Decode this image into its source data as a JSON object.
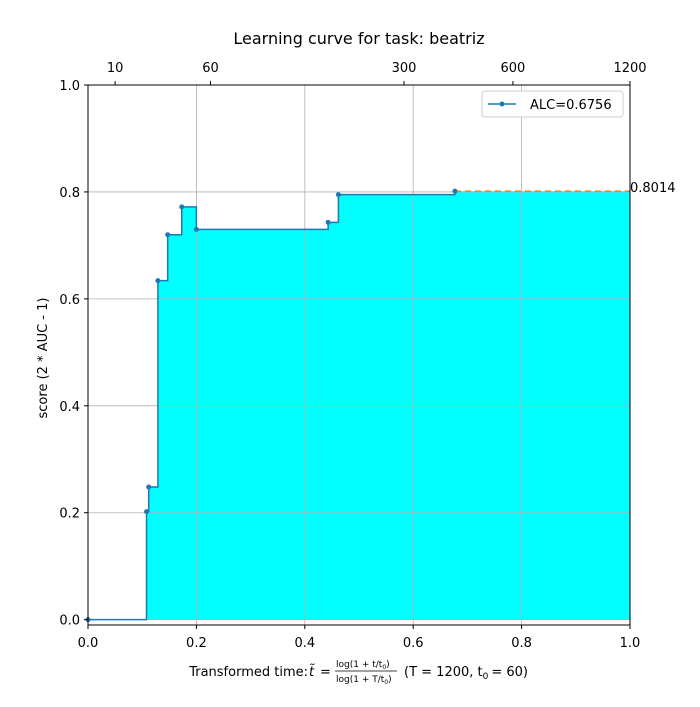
{
  "chart_data": {
    "type": "line",
    "title": "Learning curve for task: beatriz",
    "xlabel_prefix": "Transformed time: ",
    "xlabel_formula_t": "t̃",
    "xlabel_formula_num": "log(1 + t/t",
    "xlabel_formula_den": "log(1 + T/t",
    "xlabel_params": "(T = 1200,  t",
    "xlabel_t0_value": "= 60)",
    "ylabel": "score (2 * AUC - 1)",
    "xlim": [
      0.0,
      1.0
    ],
    "ylim": [
      -0.01,
      1.0
    ],
    "x_ticks": [
      {
        "value": 0.0,
        "label": "0.0"
      },
      {
        "value": 0.2,
        "label": "0.2"
      },
      {
        "value": 0.4,
        "label": "0.4"
      },
      {
        "value": 0.6,
        "label": "0.6"
      },
      {
        "value": 0.8,
        "label": "0.8"
      },
      {
        "value": 1.0,
        "label": "1.0"
      }
    ],
    "y_ticks": [
      {
        "value": 0.0,
        "label": "0.0"
      },
      {
        "value": 0.2,
        "label": "0.2"
      },
      {
        "value": 0.4,
        "label": "0.4"
      },
      {
        "value": 0.6,
        "label": "0.6"
      },
      {
        "value": 0.8,
        "label": "0.8"
      },
      {
        "value": 1.0,
        "label": "1.0"
      }
    ],
    "top_axis_ticks": [
      {
        "value": 0.05,
        "label": "10"
      },
      {
        "value": 0.226,
        "label": "60"
      },
      {
        "value": 0.583,
        "label": "300"
      },
      {
        "value": 0.784,
        "label": "600"
      },
      {
        "value": 1.0,
        "label": "1200"
      }
    ],
    "grid": true,
    "legend_position": "top-right",
    "series": [
      {
        "name": "ALC=0.6756",
        "color": "#1f77b4",
        "points": [
          {
            "x": 0.0,
            "y": 0.0
          },
          {
            "x": 0.108,
            "y": 0.202
          },
          {
            "x": 0.112,
            "y": 0.248
          },
          {
            "x": 0.129,
            "y": 0.634
          },
          {
            "x": 0.147,
            "y": 0.72
          },
          {
            "x": 0.173,
            "y": 0.772
          },
          {
            "x": 0.2,
            "y": 0.73
          },
          {
            "x": 0.443,
            "y": 0.743
          },
          {
            "x": 0.462,
            "y": 0.795
          },
          {
            "x": 0.677,
            "y": 0.8014
          }
        ]
      }
    ],
    "extension": {
      "from_x": 0.677,
      "to_x": 1.0,
      "y": 0.8014,
      "color": "#ff7f0e",
      "style": "dashed"
    },
    "fill_color": "#00ffff",
    "final_value_label": "0.8014"
  }
}
